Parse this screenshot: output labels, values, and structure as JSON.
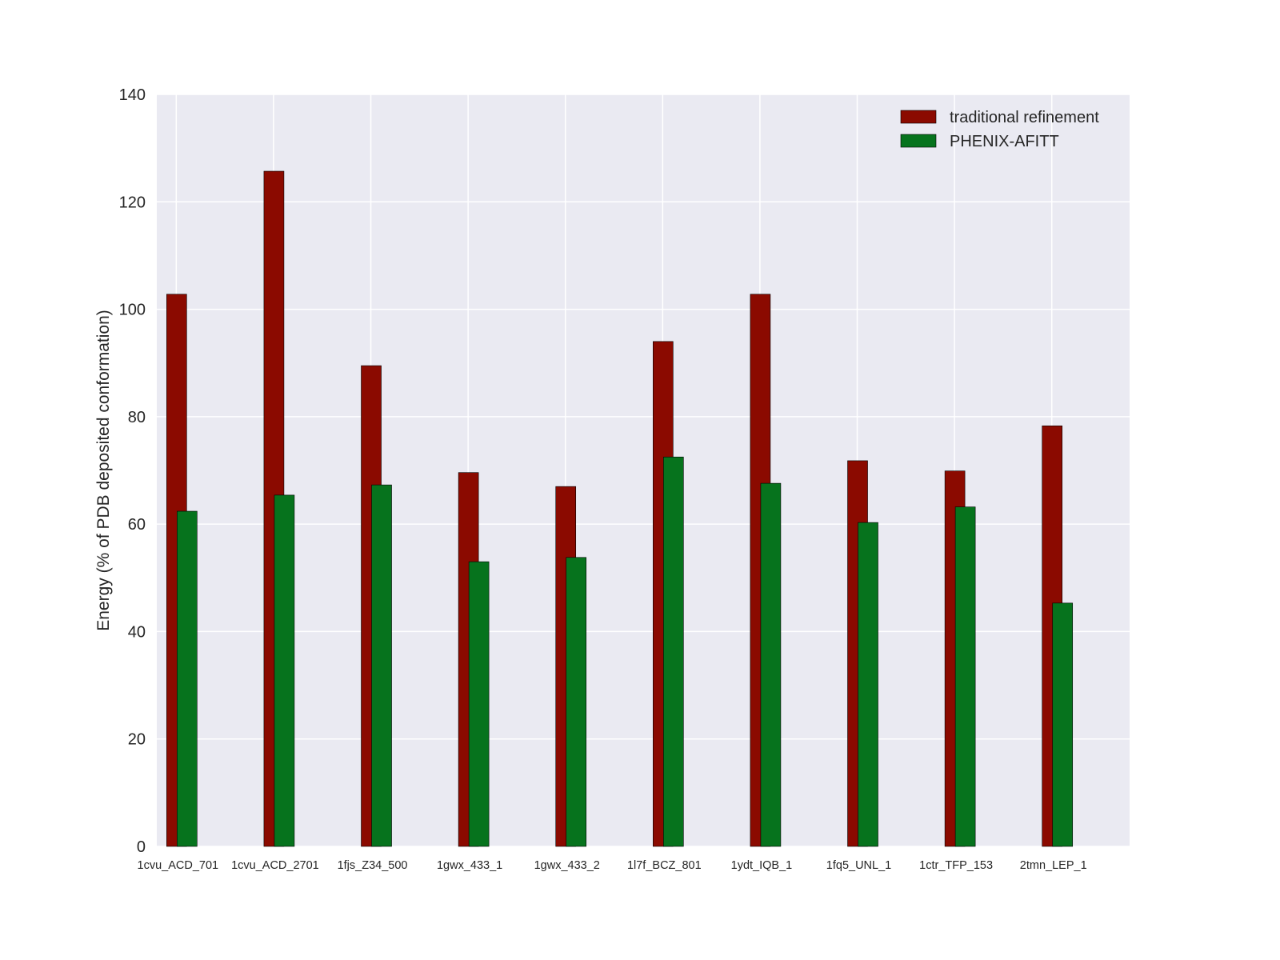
{
  "chart_data": {
    "type": "bar",
    "title": "",
    "xlabel": "",
    "ylabel": "Energy (% of PDB deposited conformation)",
    "ylim": [
      0,
      140
    ],
    "yticks": [
      0,
      20,
      40,
      60,
      80,
      100,
      120,
      140
    ],
    "grid": true,
    "legend_position": "top-right",
    "categories": [
      "1cvu_ACD_701",
      "1cvu_ACD_2701",
      "1fjs_Z34_500",
      "1gwx_433_1",
      "1gwx_433_2",
      "1l7f_BCZ_801",
      "1ydt_IQB_1",
      "1fq5_UNL_1",
      "1ctr_TFP_153",
      "2tmn_LEP_1"
    ],
    "series": [
      {
        "name": "traditional refinement",
        "color": "#8b0a00",
        "values": [
          102.8,
          125.7,
          89.5,
          69.6,
          67.0,
          94.0,
          102.8,
          71.8,
          69.9,
          78.3
        ]
      },
      {
        "name": "PHENIX-AFITT",
        "color": "#06731d",
        "values": [
          62.4,
          65.4,
          67.3,
          53.0,
          53.8,
          72.5,
          67.6,
          60.3,
          63.2,
          45.3
        ]
      }
    ],
    "background_color": "#eaeaf2"
  }
}
